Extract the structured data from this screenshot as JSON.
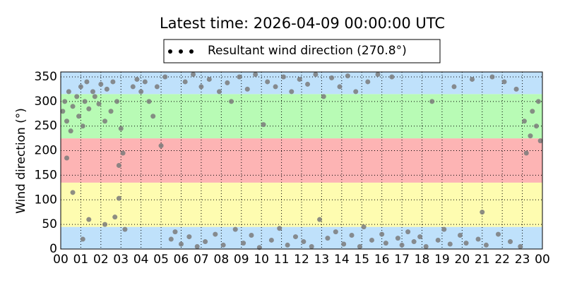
{
  "chart_data": {
    "type": "scatter",
    "title": "Latest time: 2026-04-09 00:00:00 UTC",
    "y_label": "Wind direction (°)",
    "xlim": [
      0,
      24
    ],
    "ylim": [
      0,
      360
    ],
    "xticks": [
      {
        "value": 0,
        "label": "00"
      },
      {
        "value": 1,
        "label": "01"
      },
      {
        "value": 2,
        "label": "02"
      },
      {
        "value": 3,
        "label": "03"
      },
      {
        "value": 4,
        "label": "04"
      },
      {
        "value": 5,
        "label": "05"
      },
      {
        "value": 6,
        "label": "06"
      },
      {
        "value": 7,
        "label": "07"
      },
      {
        "value": 8,
        "label": "08"
      },
      {
        "value": 9,
        "label": "09"
      },
      {
        "value": 10,
        "label": "10"
      },
      {
        "value": 11,
        "label": "11"
      },
      {
        "value": 12,
        "label": "12"
      },
      {
        "value": 13,
        "label": "13"
      },
      {
        "value": 14,
        "label": "14"
      },
      {
        "value": 15,
        "label": "15"
      },
      {
        "value": 16,
        "label": "16"
      },
      {
        "value": 17,
        "label": "17"
      },
      {
        "value": 18,
        "label": "18"
      },
      {
        "value": 19,
        "label": "19"
      },
      {
        "value": 20,
        "label": "20"
      },
      {
        "value": 21,
        "label": "21"
      },
      {
        "value": 22,
        "label": "22"
      },
      {
        "value": 23,
        "label": "23"
      },
      {
        "value": 24,
        "label": "00"
      }
    ],
    "yticks": [
      0,
      50,
      100,
      150,
      200,
      250,
      300,
      350
    ],
    "grid": true,
    "bands": [
      {
        "from": 0,
        "to": 45,
        "color": "#bfe1fb"
      },
      {
        "from": 45,
        "to": 135,
        "color": "#fefcb0"
      },
      {
        "from": 135,
        "to": 225,
        "color": "#fdb4b4"
      },
      {
        "from": 225,
        "to": 315,
        "color": "#b8fbb5"
      },
      {
        "from": 315,
        "to": 360,
        "color": "#bfe1fb"
      }
    ],
    "series": [
      {
        "name": "Resultant wind direction (270.8°)",
        "color": "#000000",
        "point_color": "#7a7a7a",
        "x": [
          0.1,
          0.2,
          0.3,
          0.4,
          0.5,
          0.6,
          0.8,
          0.9,
          1.0,
          1.1,
          1.2,
          1.3,
          1.4,
          1.6,
          1.7,
          1.9,
          2.0,
          2.2,
          2.3,
          2.5,
          2.6,
          2.8,
          3.0,
          3.1,
          2.9,
          0.3,
          0.6,
          1.1,
          1.4,
          2.2,
          2.7,
          2.9,
          3.2,
          3.6,
          3.8,
          4.0,
          4.2,
          4.4,
          4.6,
          4.8,
          5.0,
          5.2,
          5.5,
          5.7,
          6.0,
          6.2,
          6.4,
          6.6,
          6.8,
          7.0,
          7.2,
          7.4,
          7.7,
          7.9,
          8.1,
          8.3,
          8.5,
          8.7,
          8.9,
          9.1,
          9.3,
          9.5,
          9.7,
          9.9,
          10.1,
          10.3,
          10.5,
          10.7,
          10.9,
          11.1,
          11.3,
          11.5,
          11.7,
          11.9,
          12.1,
          12.3,
          12.5,
          12.7,
          12.9,
          13.1,
          13.3,
          13.5,
          13.7,
          13.9,
          14.1,
          14.3,
          14.5,
          14.7,
          14.9,
          15.1,
          15.3,
          15.5,
          15.8,
          16.0,
          16.2,
          16.5,
          16.8,
          17.0,
          17.3,
          17.6,
          17.9,
          18.2,
          18.5,
          18.8,
          19.1,
          19.4,
          19.6,
          19.9,
          20.2,
          20.5,
          20.8,
          21.0,
          21.2,
          21.5,
          21.8,
          22.1,
          22.4,
          22.7,
          22.9,
          23.1,
          23.2,
          23.4,
          23.5,
          23.7,
          23.8,
          23.9
        ],
        "values": [
          280,
          300,
          260,
          320,
          240,
          290,
          310,
          270,
          330,
          250,
          300,
          340,
          285,
          320,
          310,
          295,
          335,
          260,
          325,
          280,
          340,
          300,
          245,
          195,
          170,
          185,
          115,
          20,
          60,
          50,
          65,
          103,
          40,
          330,
          345,
          320,
          340,
          300,
          270,
          330,
          210,
          350,
          20,
          35,
          10,
          340,
          25,
          355,
          5,
          330,
          15,
          345,
          30,
          320,
          8,
          338,
          300,
          40,
          350,
          12,
          325,
          28,
          355,
          3,
          253,
          340,
          18,
          330,
          42,
          350,
          8,
          320,
          25,
          345,
          15,
          335,
          5,
          355,
          60,
          310,
          22,
          348,
          35,
          330,
          10,
          352,
          28,
          320,
          5,
          45,
          340,
          18,
          355,
          30,
          12,
          350,
          22,
          8,
          35,
          15,
          25,
          5,
          300,
          18,
          40,
          10,
          330,
          28,
          12,
          345,
          20,
          75,
          8,
          350,
          30,
          340,
          15,
          325,
          5,
          260,
          195,
          230,
          280,
          250,
          300,
          220
        ]
      }
    ]
  }
}
